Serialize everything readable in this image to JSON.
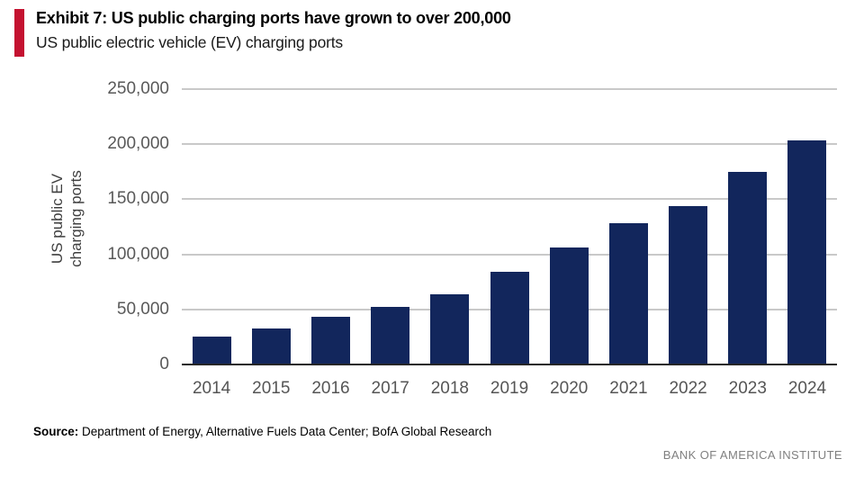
{
  "header": {
    "exhibit_title": "Exhibit 7: US public charging ports have grown to over 200,000",
    "subtitle": "US public electric vehicle (EV) charging ports",
    "accent_color": "#c41230"
  },
  "chart_data": {
    "type": "bar",
    "title": "US public electric vehicle (EV) charging ports",
    "categories": [
      "2014",
      "2015",
      "2016",
      "2017",
      "2018",
      "2019",
      "2020",
      "2021",
      "2022",
      "2023",
      "2024"
    ],
    "values": [
      25000,
      33000,
      43500,
      52500,
      63500,
      84000,
      106500,
      128500,
      143500,
      175000,
      203500
    ],
    "xlabel": "",
    "ylabel": "US public EV charging ports",
    "ylabel_lines": [
      "US public EV",
      "charging ports"
    ],
    "ylim": [
      0,
      250000
    ],
    "ytick_labels": [
      "0",
      "50,000",
      "100,000",
      "150,000",
      "200,000",
      "250,000"
    ],
    "grid": "horizontal",
    "legend": false,
    "bar_color": "#12265c",
    "gridline_color": "#c9c9c9",
    "axis_line_color": "#262626",
    "tick_text_color": "#595959"
  },
  "footer": {
    "source_label": "Source:",
    "source_text": " Department of Energy, Alternative Fuels Data Center; BofA Global Research",
    "brand": "BANK OF AMERICA INSTITUTE"
  }
}
